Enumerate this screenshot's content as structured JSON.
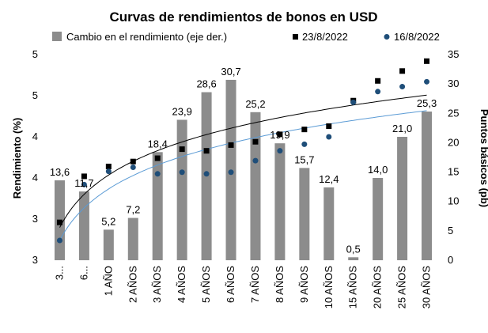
{
  "chart_data": {
    "type": "bar",
    "title": "Curvas de rendimientos de bonos en USD",
    "categories": [
      "3...",
      "6...",
      "1 AÑO",
      "2 AÑOS",
      "3 AÑOS",
      "4 AÑOS",
      "5 AÑOS",
      "6 AÑOS",
      "7 AÑOS",
      "8 AÑOS",
      "9 AÑOS",
      "10 AÑOS",
      "15 AÑOS",
      "20 AÑOS",
      "25 AÑOS",
      "30 AÑOS"
    ],
    "bar_series": {
      "name": "Cambio en el rendimiento (eje der.)",
      "values": [
        13.6,
        11.7,
        5.2,
        7.2,
        18.4,
        23.9,
        28.6,
        30.7,
        25.2,
        19.9,
        15.7,
        12.4,
        0.5,
        14.0,
        21.0,
        25.3
      ],
      "labels": [
        "13,6",
        "11,7",
        "5,2",
        "7,2",
        "18,4",
        "23,9",
        "28,6",
        "30,7",
        "25,2",
        "19,9",
        "15,7",
        "12,4",
        "0,5",
        "14,0",
        "21,0",
        "25,3"
      ],
      "color": "#8c8c8c"
    },
    "point_series": [
      {
        "name": "23/8/2022",
        "marker": "square",
        "color": "#000000",
        "values": [
          2.96,
          3.52,
          3.64,
          3.7,
          3.74,
          3.85,
          3.83,
          3.9,
          3.94,
          4.03,
          4.09,
          4.13,
          4.44,
          4.68,
          4.8,
          4.92
        ]
      },
      {
        "name": "16/8/2022",
        "marker": "circle",
        "color": "#1f4e79",
        "values": [
          2.74,
          3.42,
          3.58,
          3.63,
          3.55,
          3.57,
          3.55,
          3.57,
          3.71,
          3.83,
          3.91,
          4.0,
          4.42,
          4.55,
          4.61,
          4.67
        ]
      }
    ],
    "trendlines": [
      {
        "series": "23/8/2022",
        "color": "#000000",
        "type": "logarithmic"
      },
      {
        "series": "16/8/2022",
        "color": "#5b9bd5",
        "type": "logarithmic"
      }
    ],
    "left_axis": {
      "label": "Rendimiento (%)",
      "ylim": [
        2.5,
        5.0
      ],
      "ticks": [
        2.5,
        3.0,
        3.5,
        4.0,
        4.5,
        5.0
      ],
      "tick_labels": [
        "3",
        "3",
        "4",
        "4",
        "5",
        "5"
      ]
    },
    "right_axis": {
      "label": "Puntos básicos (pb)",
      "ylim": [
        0,
        35
      ],
      "ticks": [
        0,
        5,
        10,
        15,
        20,
        25,
        30,
        35
      ],
      "tick_labels": [
        "0",
        "5",
        "10",
        "15",
        "20",
        "25",
        "30",
        "35"
      ]
    },
    "grid": false,
    "legend_position": "top"
  }
}
